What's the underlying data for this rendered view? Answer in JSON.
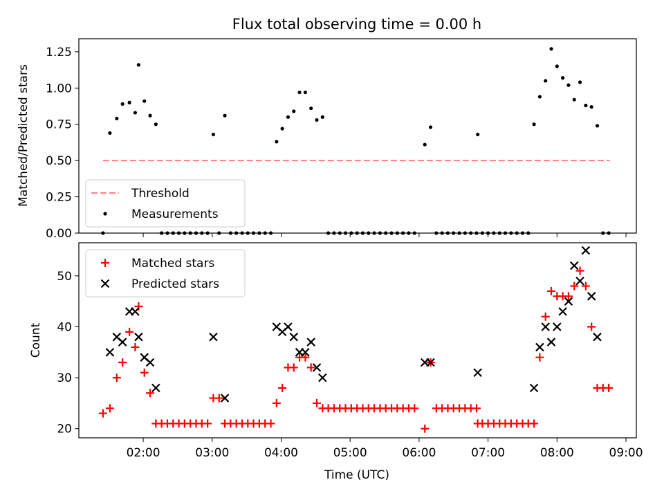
{
  "figure": {
    "title": "Flux total observing time = 0.00 h",
    "xlabel": "Time (UTC)"
  },
  "chart_data": [
    {
      "type": "scatter",
      "panel": "top",
      "ylabel": "Matched/Predicted stars",
      "xlim": [
        "01:04",
        "09:09"
      ],
      "ylim": [
        0,
        1.34
      ],
      "yticks": [
        "0.00",
        "0.25",
        "0.50",
        "0.75",
        "1.00",
        "1.25"
      ],
      "grid": false,
      "legend_position": "bottom-left",
      "threshold": {
        "name": "Threshold",
        "value": 0.5,
        "color": "#ff7f7f",
        "x_range": [
          "01:25",
          "08:46"
        ]
      },
      "series": [
        {
          "name": "Measurements",
          "color": "#000000",
          "marker": "dot",
          "points": [
            [
              "01:25",
              0.0
            ],
            [
              "01:31",
              0.69
            ],
            [
              "01:37",
              0.79
            ],
            [
              "01:42",
              0.89
            ],
            [
              "01:48",
              0.9
            ],
            [
              "01:53",
              0.83
            ],
            [
              "01:56",
              1.16
            ],
            [
              "02:01",
              0.91
            ],
            [
              "02:06",
              0.81
            ],
            [
              "02:11",
              0.75
            ],
            [
              "02:16",
              0.0
            ],
            [
              "02:21",
              0.0
            ],
            [
              "02:26",
              0.0
            ],
            [
              "02:31",
              0.0
            ],
            [
              "02:36",
              0.0
            ],
            [
              "02:41",
              0.0
            ],
            [
              "02:46",
              0.0
            ],
            [
              "02:51",
              0.0
            ],
            [
              "02:56",
              0.0
            ],
            [
              "03:01",
              0.68
            ],
            [
              "03:06",
              0.0
            ],
            [
              "03:11",
              0.81
            ],
            [
              "03:16",
              0.0
            ],
            [
              "03:21",
              0.0
            ],
            [
              "03:26",
              0.0
            ],
            [
              "03:31",
              0.0
            ],
            [
              "03:36",
              0.0
            ],
            [
              "03:41",
              0.0
            ],
            [
              "03:46",
              0.0
            ],
            [
              "03:51",
              0.0
            ],
            [
              "03:56",
              0.63
            ],
            [
              "04:01",
              0.72
            ],
            [
              "04:06",
              0.8
            ],
            [
              "04:11",
              0.84
            ],
            [
              "04:16",
              0.97
            ],
            [
              "04:21",
              0.97
            ],
            [
              "04:26",
              0.86
            ],
            [
              "04:31",
              0.78
            ],
            [
              "04:36",
              0.8
            ],
            [
              "04:41",
              0.0
            ],
            [
              "04:46",
              0.0
            ],
            [
              "04:51",
              0.0
            ],
            [
              "04:56",
              0.0
            ],
            [
              "05:01",
              0.0
            ],
            [
              "05:06",
              0.0
            ],
            [
              "05:11",
              0.0
            ],
            [
              "05:16",
              0.0
            ],
            [
              "05:21",
              0.0
            ],
            [
              "05:26",
              0.0
            ],
            [
              "05:31",
              0.0
            ],
            [
              "05:36",
              0.0
            ],
            [
              "05:41",
              0.0
            ],
            [
              "05:46",
              0.0
            ],
            [
              "05:51",
              0.0
            ],
            [
              "05:56",
              0.0
            ],
            [
              "06:05",
              0.61
            ],
            [
              "06:10",
              0.73
            ],
            [
              "06:15",
              0.0
            ],
            [
              "06:20",
              0.0
            ],
            [
              "06:25",
              0.0
            ],
            [
              "06:30",
              0.0
            ],
            [
              "06:35",
              0.0
            ],
            [
              "06:40",
              0.0
            ],
            [
              "06:45",
              0.0
            ],
            [
              "06:50",
              0.0
            ],
            [
              "06:51",
              0.68
            ],
            [
              "06:55",
              0.0
            ],
            [
              "07:00",
              0.0
            ],
            [
              "07:05",
              0.0
            ],
            [
              "07:10",
              0.0
            ],
            [
              "07:15",
              0.0
            ],
            [
              "07:20",
              0.0
            ],
            [
              "07:25",
              0.0
            ],
            [
              "07:30",
              0.0
            ],
            [
              "07:35",
              0.0
            ],
            [
              "07:40",
              0.75
            ],
            [
              "07:45",
              0.94
            ],
            [
              "07:50",
              1.05
            ],
            [
              "07:55",
              1.27
            ],
            [
              "08:00",
              1.15
            ],
            [
              "08:05",
              1.07
            ],
            [
              "08:10",
              1.02
            ],
            [
              "08:15",
              0.92
            ],
            [
              "08:20",
              1.04
            ],
            [
              "08:25",
              0.88
            ],
            [
              "08:30",
              0.87
            ],
            [
              "08:35",
              0.74
            ],
            [
              "08:40",
              0.0
            ],
            [
              "08:45",
              0.0
            ]
          ]
        }
      ]
    },
    {
      "type": "scatter",
      "panel": "bottom",
      "ylabel": "Count",
      "xlim": [
        "01:04",
        "09:09"
      ],
      "ylim": [
        18.2,
        56.5
      ],
      "yticks": [
        "20",
        "30",
        "40",
        "50"
      ],
      "xticks": [
        "02:00",
        "03:00",
        "04:00",
        "05:00",
        "06:00",
        "07:00",
        "08:00",
        "09:00"
      ],
      "grid": false,
      "legend_position": "top-left",
      "series": [
        {
          "name": "Matched stars",
          "color": "#ff0000",
          "marker": "plus",
          "points": [
            [
              "01:25",
              23
            ],
            [
              "01:31",
              24
            ],
            [
              "01:37",
              30
            ],
            [
              "01:42",
              33
            ],
            [
              "01:48",
              39
            ],
            [
              "01:53",
              36
            ],
            [
              "01:56",
              44
            ],
            [
              "02:01",
              31
            ],
            [
              "02:06",
              27
            ],
            [
              "02:11",
              21
            ],
            [
              "02:16",
              21
            ],
            [
              "02:21",
              21
            ],
            [
              "02:26",
              21
            ],
            [
              "02:31",
              21
            ],
            [
              "02:36",
              21
            ],
            [
              "02:41",
              21
            ],
            [
              "02:46",
              21
            ],
            [
              "02:51",
              21
            ],
            [
              "02:56",
              21
            ],
            [
              "03:01",
              26
            ],
            [
              "03:06",
              26
            ],
            [
              "03:11",
              21
            ],
            [
              "03:16",
              21
            ],
            [
              "03:21",
              21
            ],
            [
              "03:26",
              21
            ],
            [
              "03:31",
              21
            ],
            [
              "03:36",
              21
            ],
            [
              "03:41",
              21
            ],
            [
              "03:46",
              21
            ],
            [
              "03:51",
              21
            ],
            [
              "03:56",
              25
            ],
            [
              "04:01",
              28
            ],
            [
              "04:06",
              32
            ],
            [
              "04:11",
              32
            ],
            [
              "04:16",
              34
            ],
            [
              "04:21",
              34
            ],
            [
              "04:26",
              32
            ],
            [
              "04:31",
              25
            ],
            [
              "04:36",
              24
            ],
            [
              "04:41",
              24
            ],
            [
              "04:46",
              24
            ],
            [
              "04:51",
              24
            ],
            [
              "04:56",
              24
            ],
            [
              "05:01",
              24
            ],
            [
              "05:06",
              24
            ],
            [
              "05:11",
              24
            ],
            [
              "05:16",
              24
            ],
            [
              "05:21",
              24
            ],
            [
              "05:26",
              24
            ],
            [
              "05:31",
              24
            ],
            [
              "05:36",
              24
            ],
            [
              "05:41",
              24
            ],
            [
              "05:46",
              24
            ],
            [
              "05:51",
              24
            ],
            [
              "05:56",
              24
            ],
            [
              "06:05",
              20
            ],
            [
              "06:10",
              33
            ],
            [
              "06:15",
              24
            ],
            [
              "06:20",
              24
            ],
            [
              "06:25",
              24
            ],
            [
              "06:30",
              24
            ],
            [
              "06:35",
              24
            ],
            [
              "06:40",
              24
            ],
            [
              "06:45",
              24
            ],
            [
              "06:50",
              24
            ],
            [
              "06:51",
              21
            ],
            [
              "06:55",
              21
            ],
            [
              "07:00",
              21
            ],
            [
              "07:05",
              21
            ],
            [
              "07:10",
              21
            ],
            [
              "07:15",
              21
            ],
            [
              "07:20",
              21
            ],
            [
              "07:25",
              21
            ],
            [
              "07:30",
              21
            ],
            [
              "07:35",
              21
            ],
            [
              "07:40",
              21
            ],
            [
              "07:45",
              34
            ],
            [
              "07:50",
              42
            ],
            [
              "07:55",
              47
            ],
            [
              "08:00",
              46
            ],
            [
              "08:05",
              46
            ],
            [
              "08:10",
              46
            ],
            [
              "08:15",
              48
            ],
            [
              "08:20",
              51
            ],
            [
              "08:25",
              48
            ],
            [
              "08:30",
              40
            ],
            [
              "08:35",
              28
            ],
            [
              "08:40",
              28
            ],
            [
              "08:45",
              28
            ]
          ]
        },
        {
          "name": "Predicted stars",
          "color": "#000000",
          "marker": "x",
          "points": [
            [
              "01:31",
              35
            ],
            [
              "01:37",
              38
            ],
            [
              "01:42",
              37
            ],
            [
              "01:48",
              43
            ],
            [
              "01:53",
              43
            ],
            [
              "01:56",
              38
            ],
            [
              "02:01",
              34
            ],
            [
              "02:06",
              33
            ],
            [
              "02:11",
              28
            ],
            [
              "03:01",
              38
            ],
            [
              "03:11",
              26
            ],
            [
              "03:56",
              40
            ],
            [
              "04:01",
              39
            ],
            [
              "04:06",
              40
            ],
            [
              "04:11",
              38
            ],
            [
              "04:16",
              35
            ],
            [
              "04:21",
              35
            ],
            [
              "04:26",
              37
            ],
            [
              "04:31",
              32
            ],
            [
              "04:36",
              30
            ],
            [
              "06:05",
              33
            ],
            [
              "06:10",
              33
            ],
            [
              "06:51",
              31
            ],
            [
              "07:40",
              28
            ],
            [
              "07:45",
              36
            ],
            [
              "07:50",
              40
            ],
            [
              "07:55",
              37
            ],
            [
              "08:00",
              40
            ],
            [
              "08:05",
              43
            ],
            [
              "08:10",
              45
            ],
            [
              "08:15",
              52
            ],
            [
              "08:20",
              49
            ],
            [
              "08:25",
              55
            ],
            [
              "08:30",
              46
            ],
            [
              "08:35",
              38
            ]
          ]
        }
      ]
    }
  ]
}
